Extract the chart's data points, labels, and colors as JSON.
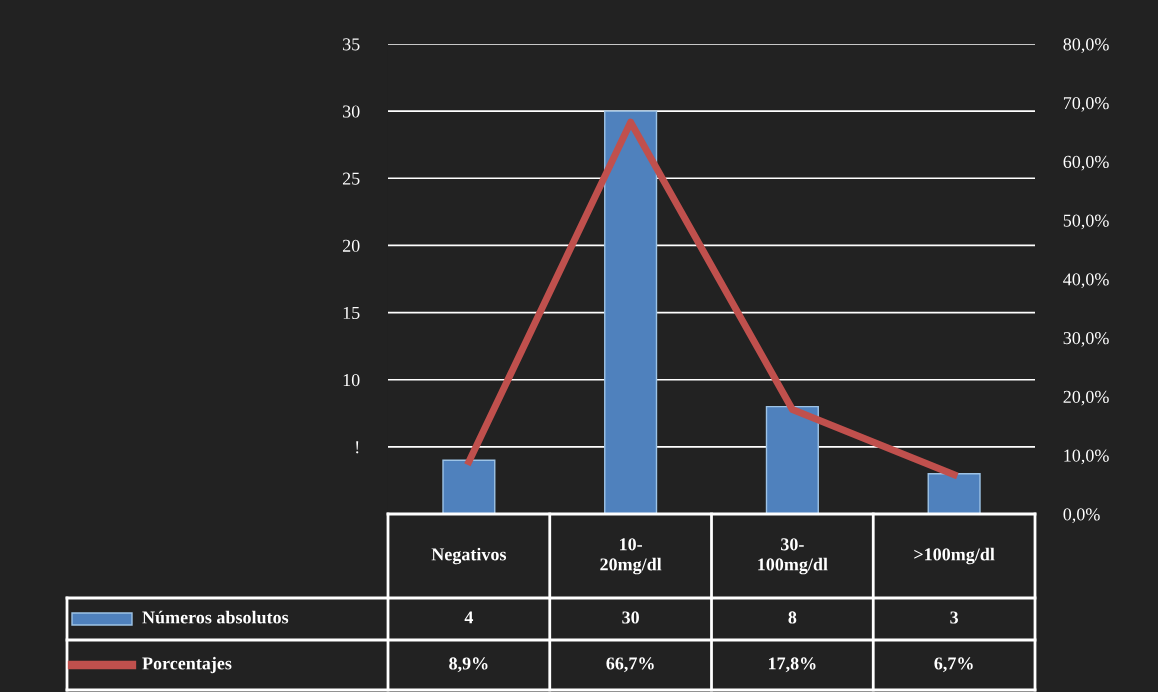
{
  "chart_data": {
    "type": "bar",
    "categories": [
      "Negativos",
      "10-\n20mg/dl",
      "30-\n100mg/dl",
      ">100mg/dl"
    ],
    "series": [
      {
        "name": "Números absolutos",
        "color": "#4f81bd",
        "values": [
          4,
          30,
          8,
          3
        ],
        "value_labels": [
          "4",
          "30",
          "8",
          "3"
        ]
      },
      {
        "name": "Porcentajes",
        "type": "line",
        "axis": "y2",
        "color": "#c0504d",
        "values": [
          8.9,
          66.7,
          17.8,
          6.7
        ],
        "value_labels": [
          "8,9%",
          "66,7%",
          "17,8%",
          "6,7%"
        ]
      }
    ],
    "ylim": [
      0,
      35
    ],
    "yticks": [
      {
        "value": 5,
        "label": "!"
      },
      10,
      15,
      20,
      25,
      30,
      35
    ],
    "y2lim": [
      0,
      80
    ],
    "y2ticks": [
      {
        "value": 0,
        "label": "0,0%"
      },
      {
        "value": 10,
        "label": "10,0%"
      },
      {
        "value": 20,
        "label": "20,0%"
      },
      {
        "value": 30,
        "label": "30,0%"
      },
      {
        "value": 40,
        "label": "40,0%"
      },
      {
        "value": 50,
        "label": "50,0%"
      },
      {
        "value": 60,
        "label": "60,0%"
      },
      {
        "value": 70,
        "label": "70,0%"
      },
      {
        "value": 80,
        "label": "80,0%"
      }
    ],
    "grid": "y",
    "legend": "bottom left"
  }
}
